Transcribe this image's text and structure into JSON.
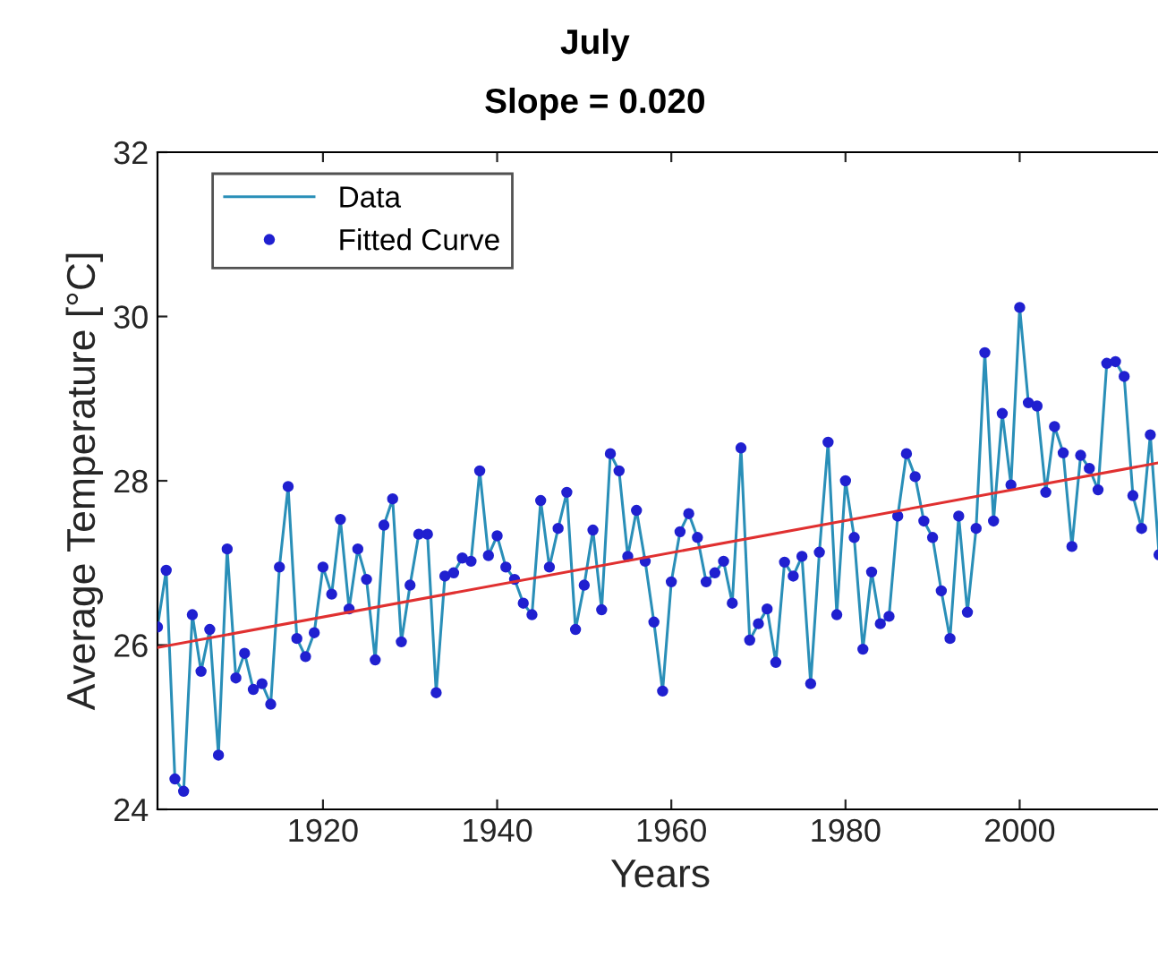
{
  "chart_data": {
    "type": "line",
    "title": "July",
    "subtitle": "Slope = 0.020",
    "xlabel": "Years",
    "ylabel": "Average Temperature [°C]",
    "x": [
      1901,
      1902,
      1903,
      1904,
      1905,
      1906,
      1907,
      1908,
      1909,
      1910,
      1911,
      1912,
      1913,
      1914,
      1915,
      1916,
      1917,
      1918,
      1919,
      1920,
      1921,
      1922,
      1923,
      1924,
      1925,
      1926,
      1927,
      1928,
      1929,
      1930,
      1931,
      1932,
      1933,
      1934,
      1935,
      1936,
      1937,
      1938,
      1939,
      1940,
      1941,
      1942,
      1943,
      1944,
      1945,
      1946,
      1947,
      1948,
      1949,
      1950,
      1951,
      1952,
      1953,
      1954,
      1955,
      1956,
      1957,
      1958,
      1959,
      1960,
      1961,
      1962,
      1963,
      1964,
      1965,
      1966,
      1967,
      1968,
      1969,
      1970,
      1971,
      1972,
      1973,
      1974,
      1975,
      1976,
      1977,
      1978,
      1979,
      1980,
      1981,
      1982,
      1983,
      1984,
      1985,
      1986,
      1987,
      1988,
      1989,
      1990,
      1991,
      1992,
      1993,
      1994,
      1995,
      1996,
      1997,
      1998,
      1999,
      2000,
      2001,
      2002,
      2003,
      2004,
      2005,
      2006,
      2007,
      2008,
      2009,
      2010,
      2011,
      2012,
      2013,
      2014,
      2015,
      2016
    ],
    "series": [
      {
        "name": "Data",
        "color": "#2a8fb8",
        "marker": "none",
        "values": [
          26.22,
          26.91,
          24.37,
          24.22,
          26.37,
          25.68,
          26.19,
          24.66,
          27.17,
          25.6,
          25.9,
          25.46,
          25.53,
          25.28,
          26.95,
          27.93,
          26.08,
          25.86,
          26.15,
          26.95,
          26.62,
          27.53,
          26.44,
          27.17,
          26.8,
          25.82,
          27.46,
          27.78,
          26.04,
          26.73,
          27.35,
          27.35,
          25.42,
          26.84,
          26.88,
          27.06,
          27.02,
          28.12,
          27.09,
          27.33,
          26.95,
          26.8,
          26.51,
          26.37,
          27.76,
          26.95,
          27.42,
          27.86,
          26.19,
          26.73,
          27.4,
          26.43,
          28.33,
          28.12,
          27.08,
          27.64,
          27.02,
          26.28,
          25.44,
          26.77,
          27.38,
          27.6,
          27.31,
          26.77,
          26.88,
          27.02,
          26.51,
          28.4,
          26.06,
          26.26,
          26.44,
          25.79,
          27.01,
          26.84,
          27.08,
          25.53,
          27.13,
          28.47,
          26.37,
          28.0,
          27.31,
          25.95,
          26.89,
          26.26,
          26.35,
          27.57,
          28.33,
          28.05,
          27.51,
          27.31,
          26.66,
          26.08,
          27.57,
          26.4,
          27.42,
          29.56,
          27.51,
          28.82,
          27.95,
          30.11,
          28.95,
          28.91,
          27.86,
          28.66,
          28.34,
          27.2,
          28.31,
          28.15,
          27.89,
          29.43,
          29.45,
          29.27,
          27.82,
          27.42,
          28.56,
          27.1
        ]
      },
      {
        "name": "Fitted Curve",
        "type": "scatter",
        "color": "#2020d0",
        "marker": "circle",
        "values": [
          26.22,
          26.91,
          24.37,
          24.22,
          26.37,
          25.68,
          26.19,
          24.66,
          27.17,
          25.6,
          25.9,
          25.46,
          25.53,
          25.28,
          26.95,
          27.93,
          26.08,
          25.86,
          26.15,
          26.95,
          26.62,
          27.53,
          26.44,
          27.17,
          26.8,
          25.82,
          27.46,
          27.78,
          26.04,
          26.73,
          27.35,
          27.35,
          25.42,
          26.84,
          26.88,
          27.06,
          27.02,
          28.12,
          27.09,
          27.33,
          26.95,
          26.8,
          26.51,
          26.37,
          27.76,
          26.95,
          27.42,
          27.86,
          26.19,
          26.73,
          27.4,
          26.43,
          28.33,
          28.12,
          27.08,
          27.64,
          27.02,
          26.28,
          25.44,
          26.77,
          27.38,
          27.6,
          27.31,
          26.77,
          26.88,
          27.02,
          26.51,
          28.4,
          26.06,
          26.26,
          26.44,
          25.79,
          27.01,
          26.84,
          27.08,
          25.53,
          27.13,
          28.47,
          26.37,
          28.0,
          27.31,
          25.95,
          26.89,
          26.26,
          26.35,
          27.57,
          28.33,
          28.05,
          27.51,
          27.31,
          26.66,
          26.08,
          27.57,
          26.4,
          27.42,
          29.56,
          27.51,
          28.82,
          27.95,
          30.11,
          28.95,
          28.91,
          27.86,
          28.66,
          28.34,
          27.2,
          28.31,
          28.15,
          27.89,
          29.43,
          29.45,
          29.27,
          27.82,
          27.42,
          28.56,
          27.1
        ]
      },
      {
        "color": "#e03030",
        "marker": "none",
        "x": [
          1901,
          2016
        ],
        "values": [
          25.97,
          28.22
        ]
      }
    ],
    "xlim": [
      1901,
      2016.5
    ],
    "ylim": [
      24,
      32
    ],
    "xticks": [
      1920,
      1940,
      1960,
      1980,
      2000
    ],
    "yticks": [
      24,
      26,
      28,
      30,
      32
    ],
    "grid": false,
    "legend": "top left",
    "line_style": "solid"
  }
}
